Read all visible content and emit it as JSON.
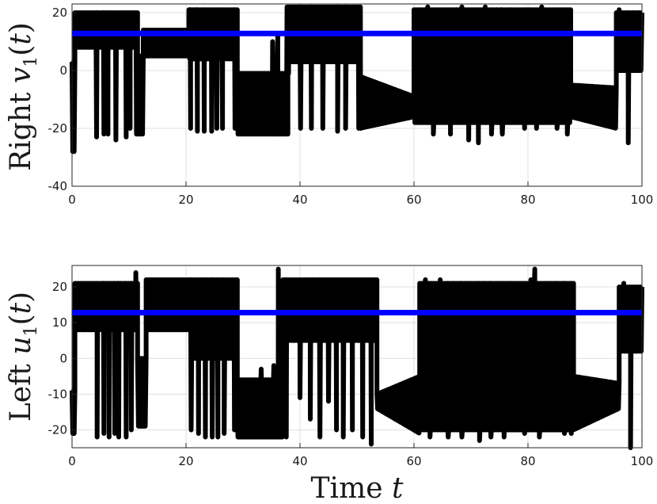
{
  "chart_data": [
    {
      "type": "line",
      "title": "",
      "ylabel": {
        "word": "Right",
        "sym": "v",
        "sub": "1",
        "open": "(",
        "arg": "t",
        "close": ")"
      },
      "xlabel": "",
      "xlim": [
        0,
        100
      ],
      "ylim": [
        -40,
        23
      ],
      "xticks": [
        0,
        20,
        40,
        60,
        80,
        100
      ],
      "yticks": [
        -40,
        -20,
        0,
        20
      ],
      "grid": true,
      "series": [
        {
          "color": "#000000",
          "segments": [
            {
              "t0": 0.0,
              "t1": 0.5,
              "kind": "osc",
              "lo": -28,
              "hi": 3,
              "cycles": 2
            },
            {
              "t0": 0.5,
              "t1": 11.5,
              "kind": "band",
              "lo": 8,
              "hi": 20,
              "cycles": 34,
              "spikes": [
                [
                  4.3,
                  -23
                ],
                [
                  5.6,
                  -22
                ],
                [
                  6.3,
                  -22
                ],
                [
                  7.7,
                  -24
                ],
                [
                  9.5,
                  -23
                ],
                [
                  10.2,
                  -20
                ],
                [
                  11.3,
                  -22
                ]
              ]
            },
            {
              "t0": 11.5,
              "t1": 12.5,
              "kind": "band",
              "lo": -22,
              "hi": 5,
              "cycles": 4
            },
            {
              "t0": 12.5,
              "t1": 20.5,
              "kind": "band",
              "lo": 5,
              "hi": 14,
              "cycles": 22
            },
            {
              "t0": 20.5,
              "t1": 29.0,
              "kind": "band",
              "lo": 4,
              "hi": 21,
              "cycles": 28,
              "spikes": [
                [
                  20.8,
                  -20
                ],
                [
                  22.0,
                  -21
                ],
                [
                  23.2,
                  -21
                ],
                [
                  24.5,
                  -21
                ],
                [
                  25.4,
                  -20
                ],
                [
                  26.4,
                  -20
                ],
                [
                  28.6,
                  -20
                ]
              ]
            },
            {
              "t0": 29.0,
              "t1": 38.0,
              "kind": "band",
              "lo": -22,
              "hi": -1,
              "cycles": 36,
              "spikes": [
                [
                  35.2,
                  10
                ],
                [
                  36.1,
                  12
                ]
              ]
            },
            {
              "t0": 38.0,
              "t1": 50.5,
              "kind": "band",
              "lo": 3,
              "hi": 22,
              "cycles": 40,
              "spikes": [
                [
                  37.8,
                  -22
                ],
                [
                  40.1,
                  -20
                ],
                [
                  42.0,
                  -20
                ],
                [
                  44.0,
                  -20
                ],
                [
                  46.6,
                  -21
                ],
                [
                  48.0,
                  -20
                ],
                [
                  50.3,
                  -20
                ]
              ]
            },
            {
              "t0": 50.5,
              "t1": 60.0,
              "kind": "wedge",
              "lo0": -20,
              "hi0": -2,
              "lo1": -16,
              "hi1": -9,
              "cycles": 40,
              "spikes": [
                [
                  50.6,
                  22
                ]
              ]
            },
            {
              "t0": 60.0,
              "t1": 87.5,
              "kind": "band",
              "lo": -18,
              "hi": 21,
              "cycles": 90,
              "spikes": [
                [
                  61.0,
                  21
                ],
                [
                  62.4,
                  22
                ],
                [
                  63.4,
                  -22
                ],
                [
                  65.0,
                  20
                ],
                [
                  66.4,
                  -22
                ],
                [
                  67.4,
                  21
                ],
                [
                  68.4,
                  22
                ],
                [
                  69.6,
                  -24
                ],
                [
                  70.4,
                  21
                ],
                [
                  71.3,
                  -25
                ],
                [
                  72.5,
                  22
                ],
                [
                  73.6,
                  -22
                ],
                [
                  74.6,
                  20
                ],
                [
                  75.5,
                  -22
                ],
                [
                  77.0,
                  20
                ],
                [
                  79.4,
                  -20
                ],
                [
                  80.5,
                  21
                ],
                [
                  81.5,
                  -20
                ],
                [
                  82.4,
                  22
                ],
                [
                  84.5,
                  20
                ],
                [
                  85.1,
                  -20
                ],
                [
                  86.9,
                  -22
                ]
              ]
            },
            {
              "t0": 87.5,
              "t1": 95.5,
              "kind": "wedge",
              "lo0": -16,
              "hi0": -5,
              "lo1": -20,
              "hi1": -6,
              "cycles": 32
            },
            {
              "t0": 95.5,
              "t1": 100.0,
              "kind": "band",
              "lo": 0,
              "hi": 20,
              "cycles": 14,
              "spikes": [
                [
                  96.0,
                  21
                ],
                [
                  97.6,
                  -25
                ],
                [
                  98.6,
                  19
                ],
                [
                  99.6,
                  5
                ]
              ]
            }
          ]
        },
        {
          "color": "#0000ff",
          "kind": "constant",
          "y": 12.8
        }
      ]
    },
    {
      "type": "line",
      "title": "",
      "ylabel": {
        "word": "Left",
        "sym": "u",
        "sub": "1",
        "open": "(",
        "arg": "t",
        "close": ")"
      },
      "xlabel": {
        "word": "Time",
        "sym": "t"
      },
      "xlim": [
        0,
        100
      ],
      "ylim": [
        -25,
        26
      ],
      "xticks": [
        0,
        20,
        40,
        60,
        80,
        100
      ],
      "yticks": [
        -20,
        -10,
        0,
        10,
        20
      ],
      "grid": true,
      "series": [
        {
          "color": "#000000",
          "segments": [
            {
              "t0": 0.0,
              "t1": 0.5,
              "kind": "osc",
              "lo": -21,
              "hi": -9,
              "cycles": 2
            },
            {
              "t0": 0.5,
              "t1": 11.5,
              "kind": "band",
              "lo": 8,
              "hi": 21,
              "cycles": 34,
              "spikes": [
                [
                  4.4,
                  -22
                ],
                [
                  5.6,
                  -21
                ],
                [
                  6.5,
                  -22
                ],
                [
                  7.5,
                  -21
                ],
                [
                  8.2,
                  -22
                ],
                [
                  9.5,
                  -22
                ],
                [
                  10.4,
                  -20
                ],
                [
                  11.2,
                  24
                ]
              ]
            },
            {
              "t0": 11.5,
              "t1": 13.0,
              "kind": "band",
              "lo": -19,
              "hi": 0,
              "cycles": 5
            },
            {
              "t0": 13.0,
              "t1": 21.0,
              "kind": "band",
              "lo": 8,
              "hi": 22,
              "cycles": 24
            },
            {
              "t0": 21.0,
              "t1": 29.0,
              "kind": "band",
              "lo": 0,
              "hi": 22,
              "cycles": 26,
              "spikes": [
                [
                  20.9,
                  -20
                ],
                [
                  22.2,
                  -21
                ],
                [
                  23.4,
                  -22
                ],
                [
                  24.6,
                  -22
                ],
                [
                  25.6,
                  -22
                ],
                [
                  26.7,
                  -21
                ],
                [
                  28.5,
                  -20
                ]
              ]
            },
            {
              "t0": 29.0,
              "t1": 37.0,
              "kind": "band",
              "lo": -22,
              "hi": -6,
              "cycles": 34,
              "spikes": [
                [
                  33.2,
                  -3
                ],
                [
                  35.4,
                  -2
                ],
                [
                  36.2,
                  25
                ]
              ]
            },
            {
              "t0": 37.0,
              "t1": 53.5,
              "kind": "band",
              "lo": 5,
              "hi": 22,
              "cycles": 50,
              "spikes": [
                [
                  37.6,
                  -22
                ],
                [
                  40.0,
                  -11
                ],
                [
                  41.8,
                  -17
                ],
                [
                  43.5,
                  -22
                ],
                [
                  45.0,
                  -12
                ],
                [
                  46.4,
                  -20
                ],
                [
                  47.6,
                  -22
                ],
                [
                  49.2,
                  -20
                ],
                [
                  51.0,
                  -22
                ],
                [
                  52.5,
                  -24
                ]
              ]
            },
            {
              "t0": 53.5,
              "t1": 61.0,
              "kind": "wedge",
              "lo0": -14,
              "hi0": -10,
              "lo1": -21,
              "hi1": -5,
              "cycles": 34
            },
            {
              "t0": 61.0,
              "t1": 88.0,
              "kind": "band",
              "lo": -20,
              "hi": 21,
              "cycles": 90,
              "spikes": [
                [
                  62.0,
                  22
                ],
                [
                  62.8,
                  -22
                ],
                [
                  64.6,
                  22
                ],
                [
                  66.0,
                  -22
                ],
                [
                  67.0,
                  21
                ],
                [
                  68.4,
                  -22
                ],
                [
                  69.4,
                  20
                ],
                [
                  71.5,
                  -23
                ],
                [
                  72.4,
                  21
                ],
                [
                  73.5,
                  -22
                ],
                [
                  74.6,
                  20
                ],
                [
                  75.8,
                  -22
                ],
                [
                  77.0,
                  20
                ],
                [
                  79.4,
                  -21
                ],
                [
                  80.5,
                  22
                ],
                [
                  81.2,
                  25
                ],
                [
                  82.0,
                  -22
                ],
                [
                  83.2,
                  20
                ],
                [
                  85.0,
                  19
                ],
                [
                  86.4,
                  -21
                ],
                [
                  87.6,
                  -21
                ]
              ]
            },
            {
              "t0": 88.0,
              "t1": 96.0,
              "kind": "wedge",
              "lo0": -20,
              "hi0": -5,
              "lo1": -14,
              "hi1": -7,
              "cycles": 32
            },
            {
              "t0": 96.0,
              "t1": 100.0,
              "kind": "band",
              "lo": 2,
              "hi": 20,
              "cycles": 12,
              "spikes": [
                [
                  96.8,
                  21
                ],
                [
                  98.0,
                  -25
                ],
                [
                  99.0,
                  18
                ],
                [
                  99.8,
                  5
                ]
              ]
            }
          ]
        },
        {
          "color": "#0000ff",
          "kind": "constant",
          "y": 12.8
        }
      ]
    }
  ]
}
